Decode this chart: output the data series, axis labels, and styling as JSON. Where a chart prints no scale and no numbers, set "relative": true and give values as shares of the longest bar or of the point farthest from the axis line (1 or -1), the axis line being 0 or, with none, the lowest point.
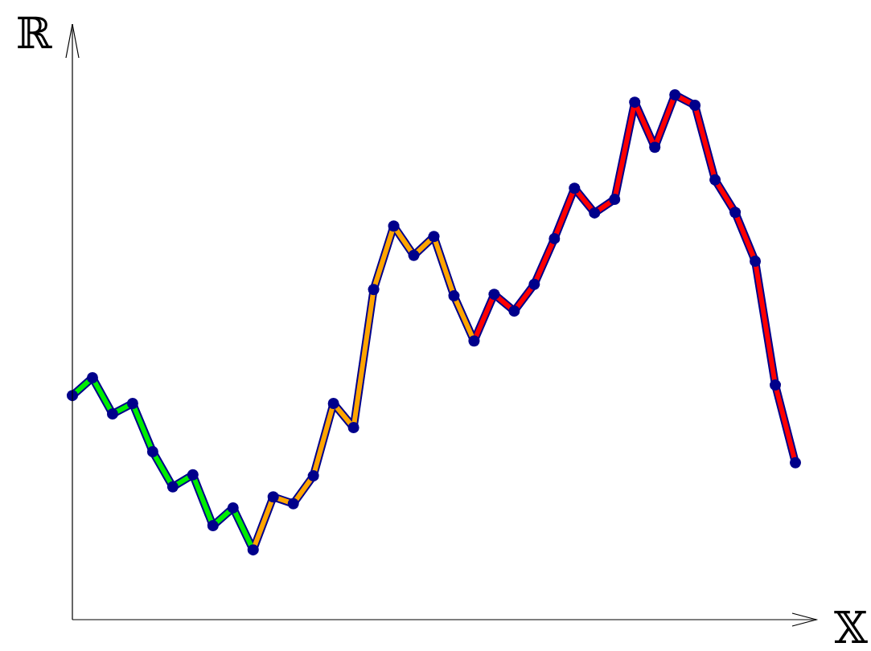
{
  "chart_data": {
    "type": "line",
    "relative": true,
    "xlabel": "𝕏",
    "ylabel": "ℝ",
    "line_style": "solid",
    "categories": [
      null,
      null,
      null,
      null,
      null,
      null,
      null,
      null,
      null,
      null,
      null,
      null,
      null,
      null,
      null,
      null,
      null,
      null,
      null,
      null,
      null,
      null,
      null,
      null,
      null,
      null,
      null,
      null,
      null,
      null,
      null,
      null,
      null,
      null,
      null,
      null,
      null
    ],
    "series": [
      {
        "marker": "circle",
        "color": "#00008b",
        "values": [
          0.427,
          0.461,
          0.392,
          0.412,
          0.32,
          0.253,
          0.276,
          0.179,
          0.213,
          0.133,
          0.234,
          0.221,
          0.274,
          0.412,
          0.366,
          0.629,
          0.75,
          0.694,
          0.73,
          0.617,
          0.531,
          0.62,
          0.588,
          0.639,
          0.726,
          0.822,
          0.775,
          0.801,
          0.986,
          0.9,
          1,
          0.98,
          0.838,
          0.776,
          0.683,
          0.447,
          0.299
        ]
      },
      {
        "color": "#00ee00",
        "values": [
          0.427,
          0.461,
          0.392,
          0.412,
          0.32,
          0.253,
          0.276,
          0.179,
          0.213,
          0.133,
          null,
          null,
          null,
          null,
          null,
          null,
          null,
          null,
          null,
          null,
          null,
          null,
          null,
          null,
          null,
          null,
          null,
          null,
          null,
          null,
          null,
          null,
          null,
          null,
          null,
          null,
          null
        ]
      },
      {
        "color": "#ffa500",
        "values": [
          null,
          null,
          null,
          null,
          null,
          null,
          null,
          null,
          null,
          0.133,
          0.234,
          0.221,
          0.274,
          0.412,
          0.366,
          0.629,
          0.75,
          0.694,
          0.73,
          0.617,
          0.531,
          null,
          null,
          null,
          null,
          null,
          null,
          null,
          null,
          null,
          null,
          null,
          null,
          null,
          null,
          null,
          null
        ]
      },
      {
        "color": "#ff0000",
        "values": [
          null,
          null,
          null,
          null,
          null,
          null,
          null,
          null,
          null,
          null,
          null,
          null,
          null,
          null,
          null,
          null,
          null,
          null,
          null,
          null,
          0.531,
          0.62,
          0.588,
          0.639,
          0.726,
          0.822,
          0.775,
          0.801,
          0.986,
          0.9,
          1,
          0.98,
          0.838,
          0.776,
          0.683,
          0.447,
          0.299
        ]
      }
    ]
  }
}
